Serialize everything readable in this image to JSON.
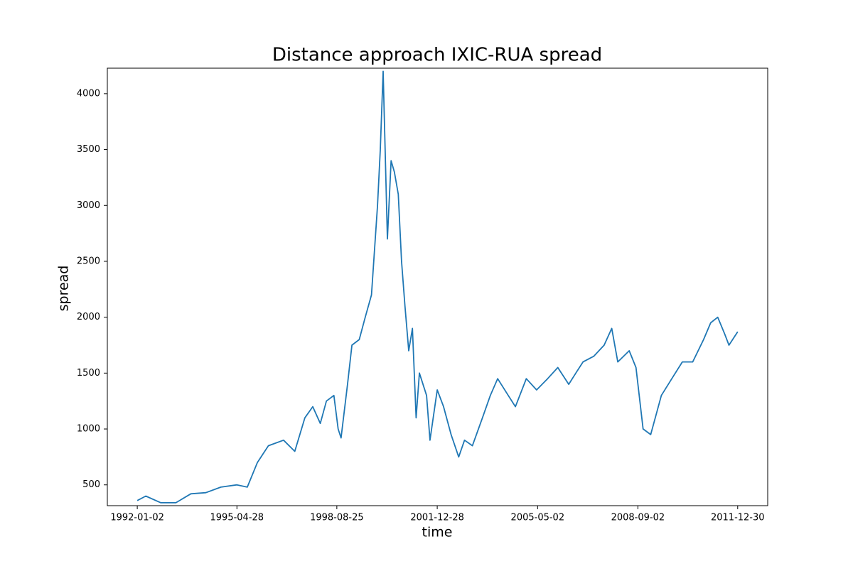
{
  "chart_data": {
    "type": "line",
    "title": "Distance approach IXIC-RUA spread",
    "x_label": "time",
    "y_label": "spread",
    "x": [
      "1992-01-02",
      "1992-04-15",
      "1992-10-15",
      "1993-04-15",
      "1993-10-15",
      "1994-04-15",
      "1994-10-15",
      "1995-04-28",
      "1995-09-01",
      "1996-01-02",
      "1996-05-15",
      "1996-11-15",
      "1997-04-01",
      "1997-08-01",
      "1997-11-05",
      "1998-02-05",
      "1998-04-20",
      "1998-07-20",
      "1998-09-10",
      "1998-10-15",
      "1999-01-02",
      "1999-02-25",
      "1999-05-25",
      "1999-08-05",
      "1999-10-20",
      "2000-01-02",
      "2000-02-05",
      "2000-03-10",
      "2000-05-01",
      "2000-06-15",
      "2000-07-25",
      "2000-09-10",
      "2000-10-20",
      "2000-12-01",
      "2001-01-15",
      "2001-03-01",
      "2001-04-15",
      "2001-05-25",
      "2001-08-20",
      "2001-10-01",
      "2001-12-28",
      "2002-03-15",
      "2002-06-15",
      "2002-09-15",
      "2002-11-25",
      "2003-03-01",
      "2003-07-01",
      "2003-10-05",
      "2004-01-02",
      "2004-05-10",
      "2004-08-05",
      "2004-12-15",
      "2005-04-20",
      "2005-09-01",
      "2006-01-02",
      "2006-05-15",
      "2006-08-10",
      "2006-11-05",
      "2007-03-15",
      "2007-07-20",
      "2007-10-20",
      "2008-01-02",
      "2008-05-20",
      "2008-08-10",
      "2008-11-05",
      "2009-02-05",
      "2009-06-15",
      "2009-10-20",
      "2010-02-25",
      "2010-07-01",
      "2010-11-10",
      "2011-02-05",
      "2011-05-01",
      "2011-07-25",
      "2011-09-15",
      "2011-12-30"
    ],
    "series": [
      {
        "name": "spread",
        "color": "#1f77b4",
        "values": [
          360,
          400,
          340,
          340,
          420,
          430,
          480,
          500,
          480,
          700,
          850,
          900,
          800,
          1100,
          1200,
          1050,
          1250,
          1300,
          1000,
          920,
          1400,
          1750,
          1800,
          2000,
          2200,
          3000,
          3500,
          4200,
          2700,
          3400,
          3300,
          3100,
          2500,
          2100,
          1700,
          1900,
          1100,
          1500,
          1300,
          900,
          1350,
          1200,
          950,
          750,
          900,
          850,
          1100,
          1300,
          1450,
          1300,
          1200,
          1450,
          1350,
          1450,
          1550,
          1400,
          1500,
          1600,
          1650,
          1750,
          1900,
          1600,
          1700,
          1550,
          1000,
          950,
          1300,
          1450,
          1600,
          1600,
          1800,
          1950,
          2000,
          1850,
          1750,
          1870
        ]
      }
    ],
    "xlim": [
      "1991-01-03",
      "2012-12-29"
    ],
    "xticks": [
      "1992-01-02",
      "1995-04-28",
      "1998-08-25",
      "2001-12-28",
      "2005-05-02",
      "2008-09-02",
      "2011-12-30"
    ],
    "ylim": [
      314,
      4228
    ],
    "yticks": [
      500,
      1000,
      1500,
      2000,
      2500,
      3000,
      3500,
      4000
    ],
    "grid": false
  }
}
